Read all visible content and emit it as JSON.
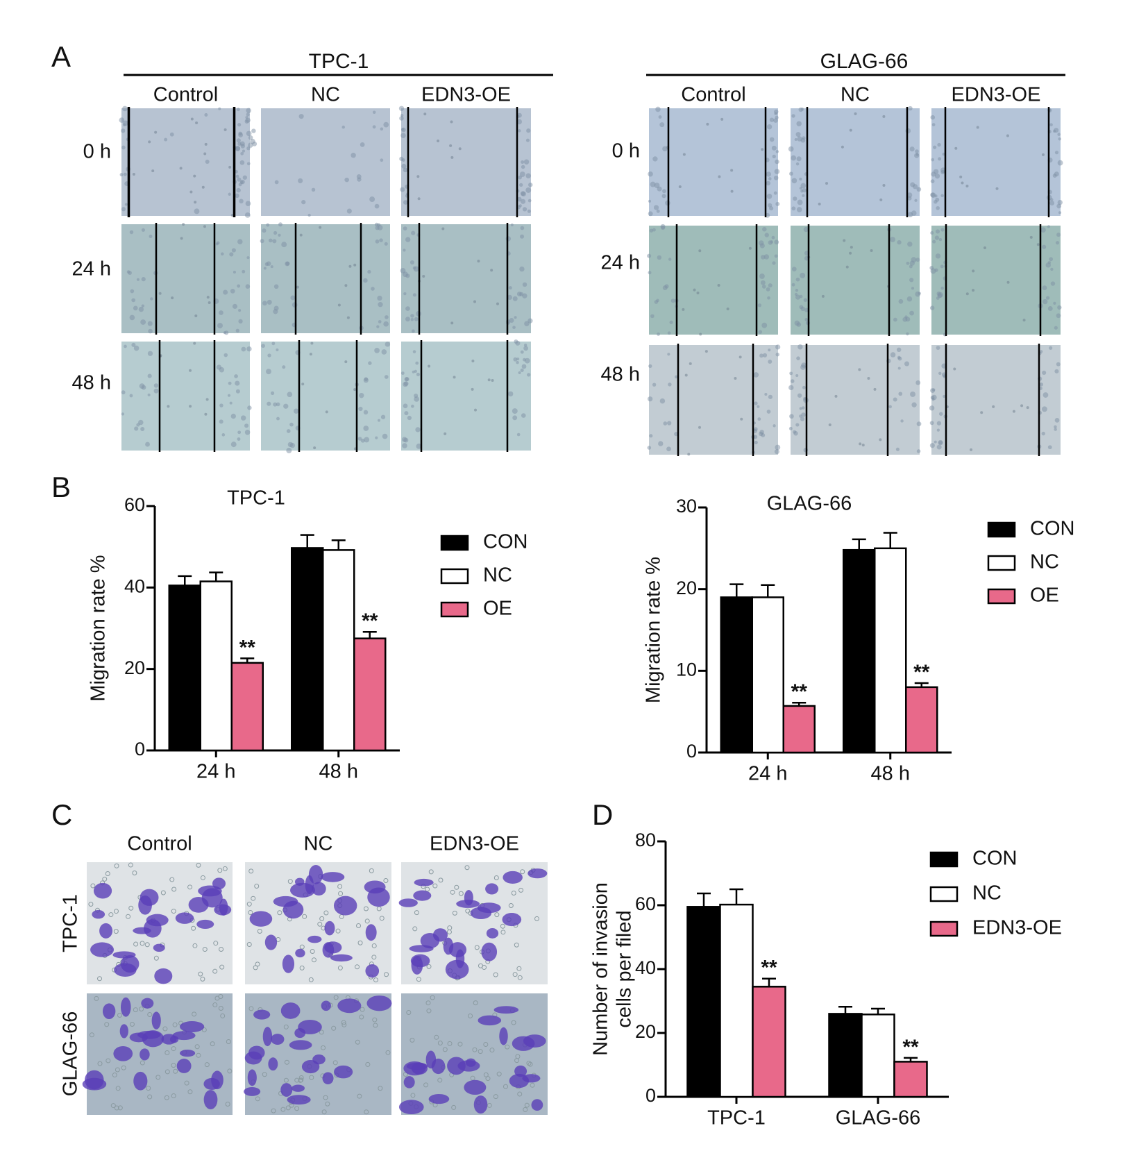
{
  "panel_labels": [
    "A",
    "B",
    "C",
    "D"
  ],
  "panel_a": [
    {
      "title": "TPC-1",
      "columns": [
        "Control",
        "NC",
        "EDN3-OE"
      ],
      "rows": [
        "0 h",
        "24 h",
        "48 h"
      ]
    },
    {
      "title": "GLAG-66",
      "columns": [
        "Control",
        "NC",
        "EDN3-OE"
      ],
      "rows": [
        "0 h",
        "24 h",
        "48 h"
      ]
    }
  ],
  "panel_c": {
    "columns": [
      "Control",
      "NC",
      "EDN3-OE"
    ],
    "rows": [
      "TPC-1",
      "GLAG-66"
    ]
  },
  "chart_data": [
    {
      "type": "bar",
      "title": "TPC-1",
      "ylabel": "Migration rate %",
      "categories": [
        "24 h",
        "48 h"
      ],
      "ylim": [
        0,
        60
      ],
      "yticks": [
        0,
        20,
        40,
        60
      ],
      "series": [
        {
          "name": "CON",
          "color": "#000000",
          "values": [
            40.5,
            49.7
          ],
          "errors": [
            2.3,
            3.2
          ]
        },
        {
          "name": "NC",
          "color": "#ffffff",
          "values": [
            41.5,
            49.2
          ],
          "errors": [
            2.2,
            2.4
          ]
        },
        {
          "name": "OE",
          "color": "#e8698a",
          "values": [
            21.5,
            27.5
          ],
          "errors": [
            1.1,
            1.6
          ],
          "significance": [
            "**",
            "**"
          ]
        }
      ]
    },
    {
      "type": "bar",
      "title": "GLAG-66",
      "ylabel": "Migration rate %",
      "categories": [
        "24 h",
        "48 h"
      ],
      "ylim": [
        0,
        30
      ],
      "yticks": [
        0,
        10,
        20,
        30
      ],
      "series": [
        {
          "name": "CON",
          "color": "#000000",
          "values": [
            19.0,
            24.8
          ],
          "errors": [
            1.6,
            1.3
          ]
        },
        {
          "name": "NC",
          "color": "#ffffff",
          "values": [
            19.0,
            25.0
          ],
          "errors": [
            1.5,
            1.9
          ]
        },
        {
          "name": "OE",
          "color": "#e8698a",
          "values": [
            5.7,
            8.0
          ],
          "errors": [
            0.4,
            0.5
          ],
          "significance": [
            "**",
            "**"
          ]
        }
      ]
    },
    {
      "type": "bar",
      "ylabel": [
        "Number of invasion",
        "cells per filed"
      ],
      "categories": [
        "TPC-1",
        "GLAG-66"
      ],
      "ylim": [
        0,
        80
      ],
      "yticks": [
        0,
        20,
        40,
        60,
        80
      ],
      "series": [
        {
          "name": "CON",
          "color": "#000000",
          "values": [
            59.5,
            26.0
          ],
          "errors": [
            4.2,
            2.2
          ]
        },
        {
          "name": "NC",
          "color": "#ffffff",
          "values": [
            60.2,
            25.8
          ],
          "errors": [
            4.8,
            1.8
          ]
        },
        {
          "name": "EDN3-OE",
          "color": "#e8698a",
          "values": [
            34.5,
            11.0
          ],
          "errors": [
            2.5,
            1.2
          ],
          "significance": [
            "**",
            "**"
          ]
        }
      ]
    }
  ]
}
